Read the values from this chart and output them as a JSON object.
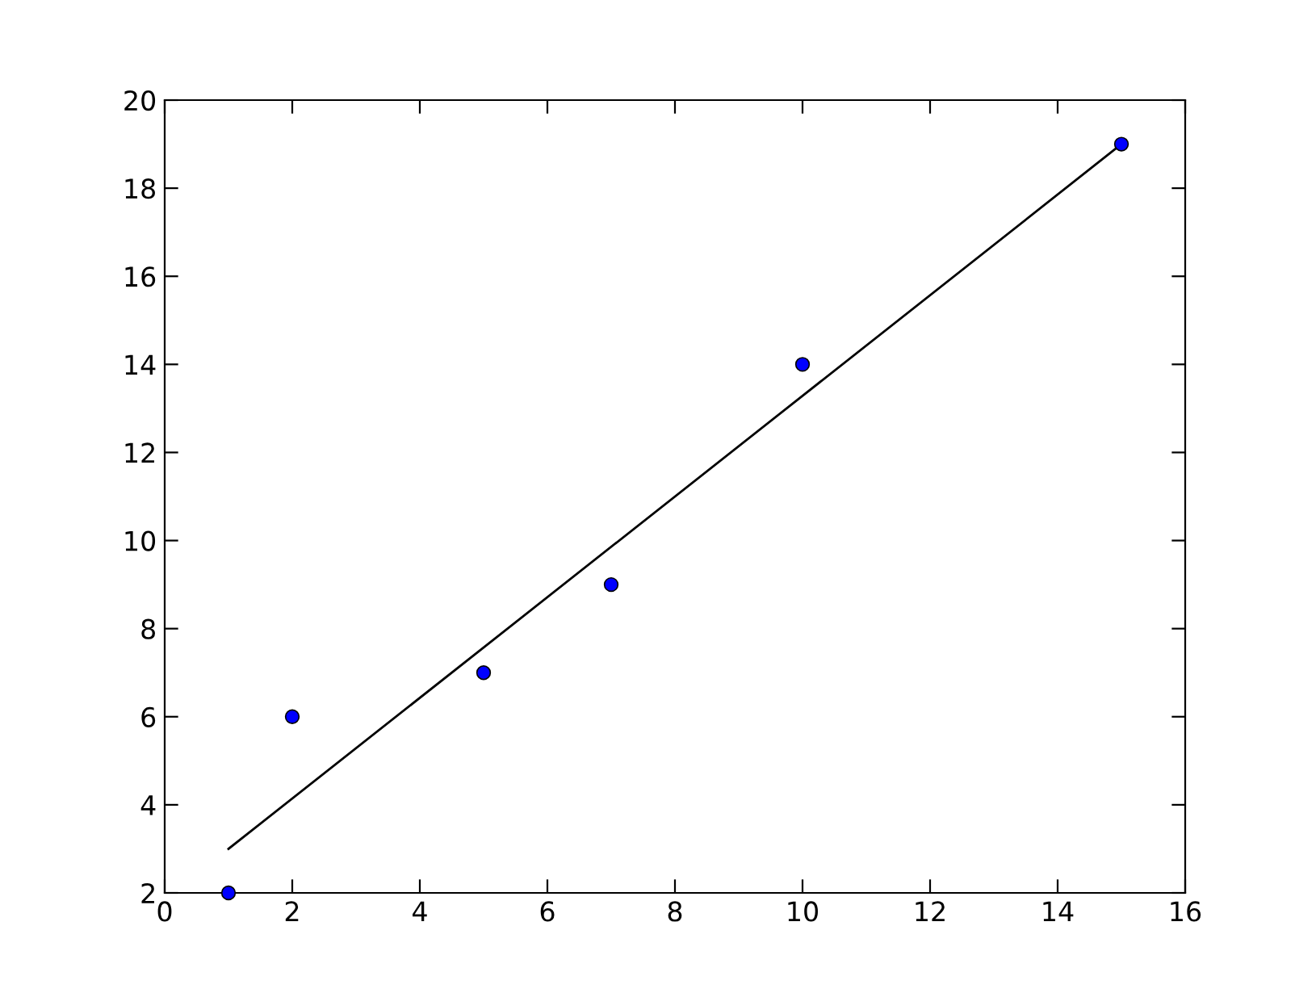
{
  "chart_data": {
    "type": "scatter",
    "series": [
      {
        "color": "#0000ff",
        "marker": "circle",
        "x": [
          1,
          2,
          5,
          7,
          10,
          15
        ],
        "values": [
          2,
          6,
          7,
          9,
          14,
          19
        ]
      },
      {
        "type": "line",
        "color": "#000000",
        "marker": "none",
        "line_style": "solid",
        "x": [
          1,
          15
        ],
        "values": [
          3,
          19
        ]
      }
    ],
    "xlim": [
      0,
      16
    ],
    "xticks": [
      0,
      2,
      4,
      6,
      8,
      10,
      12,
      14,
      16
    ],
    "ylim": [
      2,
      20
    ],
    "yticks": [
      2,
      4,
      6,
      8,
      10,
      12,
      14,
      16,
      18,
      20
    ],
    "grid": false,
    "legend": false
  }
}
